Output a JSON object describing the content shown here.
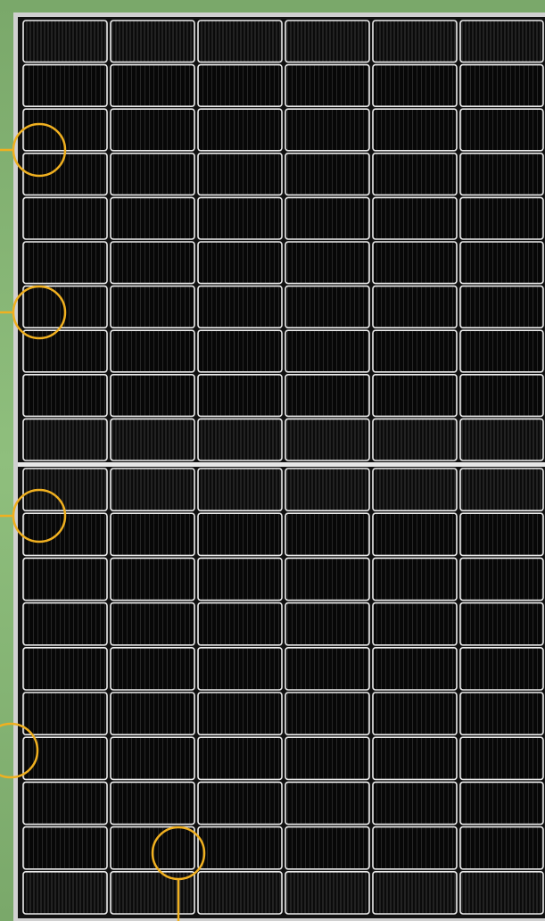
{
  "image": {
    "subject": "el-luminescence-solar-panel",
    "panel": {
      "columns": 6,
      "rows_top_half": 10,
      "rows_bottom_half": 10,
      "cell_color": "#070707",
      "busbar_color": "#f2f2f2",
      "frame_color": "#d9d9d9"
    },
    "background_color": "#86b574",
    "marker_color": "#f0b020",
    "markers": [
      {
        "name": "defect-marker-1",
        "leader": "left"
      },
      {
        "name": "defect-marker-2",
        "leader": "left"
      },
      {
        "name": "defect-marker-3",
        "leader": "left"
      },
      {
        "name": "defect-marker-4",
        "leader": "left"
      },
      {
        "name": "defect-marker-5",
        "leader": "down"
      }
    ]
  }
}
